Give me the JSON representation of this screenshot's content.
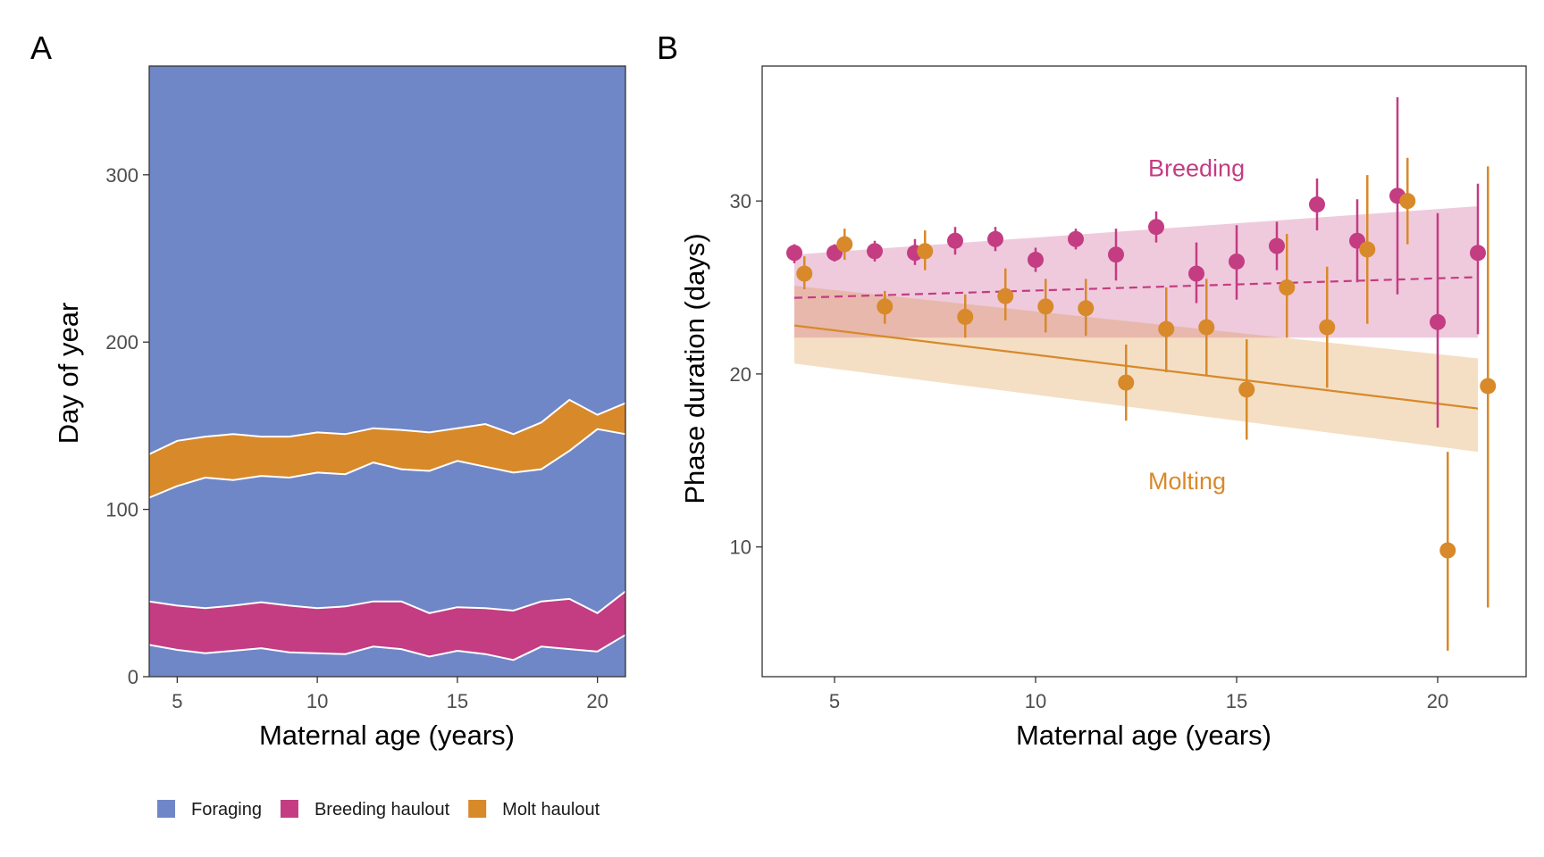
{
  "colors": {
    "foraging": "#6f87c7",
    "breeding": "#c43c82",
    "molt": "#d8892a",
    "breeding_band": "#ebbdd6",
    "molt_band": "#f5dfc3"
  },
  "chart_data": [
    {
      "panel": "A",
      "type": "area",
      "xlabel": "Maternal age (years)",
      "ylabel": "Day of year",
      "xlim": [
        4,
        21
      ],
      "ylim": [
        0,
        365
      ],
      "xticks": [
        5,
        10,
        15,
        20
      ],
      "yticks": [
        0,
        100,
        200,
        300
      ],
      "grid": false,
      "legend_position": "bottom",
      "x": [
        4,
        5,
        6,
        7,
        8,
        9,
        10,
        11,
        12,
        13,
        14,
        15,
        16,
        17,
        18,
        19,
        20,
        21
      ],
      "series": [
        {
          "name": "Breeding haulout",
          "color_key": "breeding",
          "lower": [
            19,
            16,
            14,
            15.5,
            17,
            14.5,
            14,
            13.5,
            18,
            16.5,
            12,
            15.5,
            13.5,
            10,
            18,
            16.5,
            15,
            25
          ],
          "upper": [
            45,
            42.5,
            41,
            42.5,
            44.5,
            42.5,
            41,
            42,
            45,
            45,
            38,
            41.5,
            41,
            39.5,
            45,
            46.5,
            38,
            51
          ]
        },
        {
          "name": "Molt haulout",
          "color_key": "molt",
          "lower": [
            107,
            114,
            119,
            117.5,
            120,
            119,
            122,
            121,
            128,
            124,
            123,
            129,
            125.5,
            122,
            124,
            135,
            148,
            145
          ],
          "upper": [
            133,
            141,
            143.5,
            145,
            143.5,
            143.5,
            146,
            145,
            148.5,
            147.5,
            146,
            148.5,
            151,
            145,
            152,
            165.5,
            156.5,
            163.5
          ]
        }
      ],
      "legend": [
        {
          "label": "Foraging",
          "color_key": "foraging"
        },
        {
          "label": "Breeding haulout",
          "color_key": "breeding"
        },
        {
          "label": "Molt haulout",
          "color_key": "molt"
        }
      ]
    },
    {
      "panel": "B",
      "type": "scatter",
      "xlabel": "Maternal age (years)",
      "ylabel": "Phase duration (days)",
      "xlim": [
        3.2,
        22.2
      ],
      "ylim": [
        2.5,
        37.8
      ],
      "xticks": [
        5,
        10,
        15,
        20
      ],
      "yticks": [
        10,
        20,
        30
      ],
      "grid": false,
      "series": [
        {
          "name": "Breeding",
          "color_key": "breeding",
          "line": "dashed",
          "x": [
            4,
            5,
            6,
            7,
            8,
            9,
            10,
            11,
            12,
            13,
            14,
            15,
            16,
            17,
            18,
            19,
            20,
            21
          ],
          "y": [
            27,
            27,
            27.1,
            27,
            27.7,
            27.8,
            26.6,
            27.8,
            26.9,
            28.5,
            25.8,
            26.5,
            27.4,
            29.8,
            27.7,
            30.3,
            23,
            27
          ],
          "ymin": [
            26.4,
            26.5,
            26.5,
            26.3,
            26.9,
            27.1,
            25.9,
            27.2,
            25.4,
            27.6,
            24.1,
            24.3,
            26,
            28.3,
            25.3,
            24.6,
            16.9,
            22.3
          ],
          "ymax": [
            27.5,
            27.5,
            27.7,
            27.8,
            28.5,
            28.5,
            27.3,
            28.4,
            28.4,
            29.4,
            27.6,
            28.6,
            28.8,
            31.3,
            30.1,
            36,
            29.3,
            31
          ],
          "trend": {
            "x": [
              4,
              21
            ],
            "y": [
              24.4,
              25.6
            ]
          },
          "band": {
            "x": [
              4,
              21
            ],
            "lower": [
              22.1,
              22.1
            ],
            "upper": [
              26.9,
              29.7
            ]
          }
        },
        {
          "name": "Molting",
          "color_key": "molt",
          "line": "solid",
          "x": [
            4.25,
            5.25,
            6.25,
            7.25,
            8.25,
            9.25,
            10.25,
            11.25,
            12.25,
            13.25,
            14.25,
            15.25,
            16.25,
            17.25,
            18.25,
            19.25,
            20.25,
            21.25
          ],
          "y": [
            25.8,
            27.5,
            23.9,
            27.1,
            23.3,
            24.5,
            23.9,
            23.8,
            19.5,
            22.6,
            22.7,
            19.1,
            25,
            22.7,
            27.2,
            30,
            9.8,
            19.3
          ],
          "ymin": [
            24.9,
            26.6,
            22.9,
            26,
            22.1,
            23.1,
            22.4,
            22.2,
            17.3,
            20.1,
            19.9,
            16.2,
            22.1,
            19.2,
            22.9,
            27.5,
            4,
            6.5
          ],
          "ymax": [
            26.8,
            28.4,
            24.8,
            28.3,
            24.6,
            26.1,
            25.5,
            25.5,
            21.7,
            25,
            25.5,
            22,
            28.1,
            26.2,
            31.5,
            32.5,
            15.5,
            32
          ],
          "trend": {
            "x": [
              4,
              21
            ],
            "y": [
              22.8,
              18
            ]
          },
          "band": {
            "x": [
              4,
              21
            ],
            "lower": [
              20.6,
              15.5
            ],
            "upper": [
              25.1,
              20.9
            ]
          }
        }
      ],
      "annotations": [
        {
          "text": "Breeding",
          "x": 12.8,
          "y": 31.9,
          "color_key": "breeding"
        },
        {
          "text": "Molting",
          "x": 12.8,
          "y": 13.8,
          "color_key": "molt"
        }
      ]
    }
  ]
}
